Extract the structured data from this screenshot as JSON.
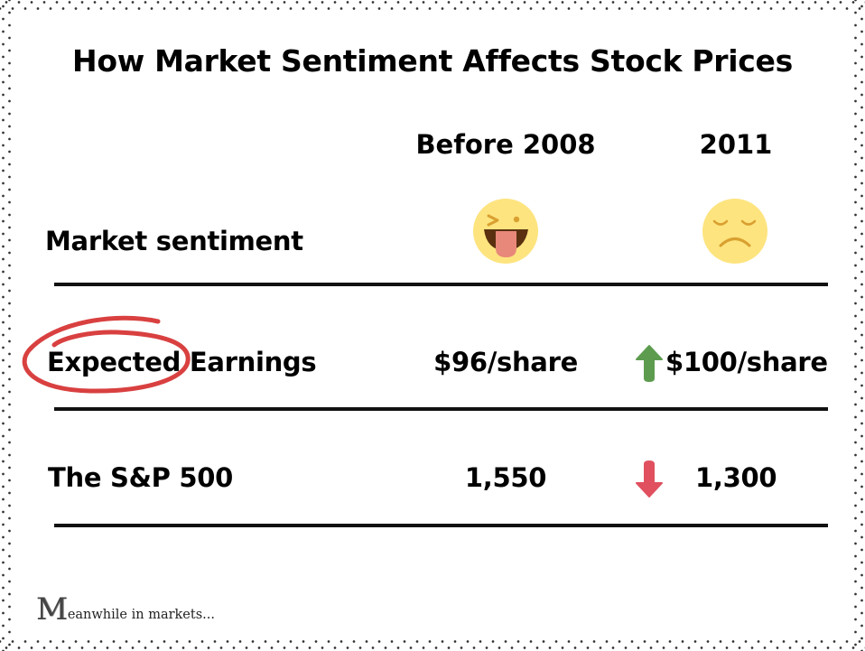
{
  "title": "How Market Sentiment Affects Stock Prices",
  "columns": {
    "before": "Before 2008",
    "after": "2011"
  },
  "rows": {
    "sentiment": {
      "label": "Market sentiment",
      "before_icon": "winking-tongue-face-icon",
      "after_icon": "sad-face-icon"
    },
    "earnings": {
      "label": "Expected Earnings",
      "before": "$96/share",
      "after": "$100/share",
      "trend_icon": "arrow-up-icon",
      "highlight": "red-circle"
    },
    "sp500": {
      "label": "The S&P 500",
      "before": "1,550",
      "after": "1,300",
      "trend_icon": "arrow-down-icon"
    }
  },
  "colors": {
    "up": "#5d9c4f",
    "down": "#e0505f",
    "circle": "#d94040",
    "emoji_face": "#fde47f",
    "emoji_feature": "#d9a030"
  },
  "footer": {
    "logo_letter": "M",
    "logo_text": "eanwhile in markets..."
  }
}
